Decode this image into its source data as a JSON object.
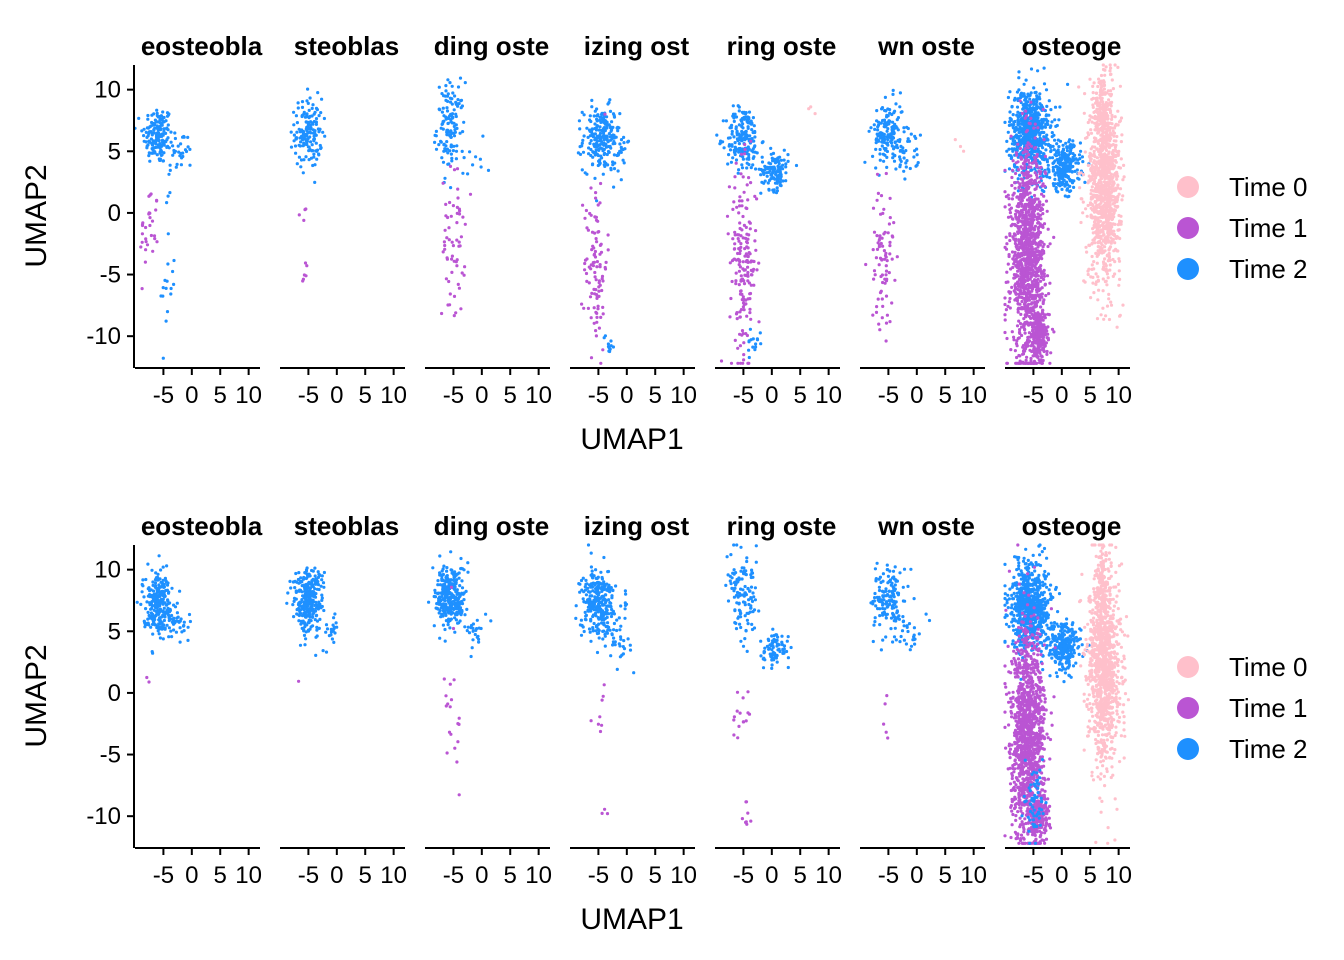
{
  "chart_data": [
    {
      "type": "scatter",
      "xlabel": "UMAP1",
      "ylabel": "UMAP2",
      "facets": [
        "eosteobla",
        "steoblas",
        "ding oste",
        "izing ost",
        "ring oste",
        "wn oste",
        "osteoge"
      ],
      "x_ticks": [
        -5,
        0,
        5,
        10
      ],
      "x_tick_labels": [
        "-5",
        "0",
        "5",
        "10"
      ],
      "y_ticks": [
        -10,
        -5,
        0,
        5,
        10
      ],
      "y_tick_labels": [
        "-10",
        "-5",
        "0",
        "5",
        "10"
      ],
      "xlim": [
        -10,
        12
      ],
      "ylim": [
        -12.5,
        12
      ],
      "legend": [
        {
          "label": "Time 0",
          "color": "#FFC0CB"
        },
        {
          "label": "Time 1",
          "color": "#BA55D3"
        },
        {
          "label": "Time 2",
          "color": "#1E90FF"
        }
      ],
      "legend_position": "right",
      "clusters": [
        [
          {
            "series": 2,
            "cx": -6,
            "cy": 6.3,
            "sx": 1.3,
            "sy": 1.2,
            "n": 160
          },
          {
            "series": 2,
            "cx": -2,
            "cy": 5,
            "sx": 1.2,
            "sy": 0.8,
            "n": 30
          },
          {
            "series": 1,
            "cx": -7.5,
            "cy": -1.5,
            "sx": 0.8,
            "sy": 2,
            "n": 30
          },
          {
            "series": 2,
            "cx": -4.5,
            "cy": -5,
            "sx": 0.8,
            "sy": 3.5,
            "n": 20
          }
        ],
        [
          {
            "series": 2,
            "cx": -5,
            "cy": 6.5,
            "sx": 1.2,
            "sy": 1.4,
            "n": 150
          },
          {
            "series": 1,
            "cx": -6,
            "cy": -3,
            "sx": 0.8,
            "sy": 2.5,
            "n": 10
          }
        ],
        [
          {
            "series": 2,
            "cx": -5.5,
            "cy": 7,
            "sx": 1.2,
            "sy": 1.8,
            "n": 130
          },
          {
            "series": 1,
            "cx": -5,
            "cy": -2.5,
            "sx": 1,
            "sy": 3,
            "n": 60
          },
          {
            "series": 2,
            "cx": -1,
            "cy": 4,
            "sx": 1.5,
            "sy": 1.5,
            "n": 8
          }
        ],
        [
          {
            "series": 2,
            "cx": -4.5,
            "cy": 6,
            "sx": 1.6,
            "sy": 1.3,
            "n": 220
          },
          {
            "series": 2,
            "cx": -1.5,
            "cy": 4.5,
            "sx": 1,
            "sy": 1,
            "n": 20
          },
          {
            "series": 1,
            "cx": -5.5,
            "cy": -4,
            "sx": 1,
            "sy": 3.5,
            "n": 100
          },
          {
            "series": 2,
            "cx": -3,
            "cy": -10.5,
            "sx": 0.6,
            "sy": 0.6,
            "n": 12
          }
        ],
        [
          {
            "series": 2,
            "cx": -5,
            "cy": 6,
            "sx": 1.5,
            "sy": 1.3,
            "n": 180
          },
          {
            "series": 2,
            "cx": 0.5,
            "cy": 3.5,
            "sx": 1.2,
            "sy": 0.8,
            "n": 120
          },
          {
            "series": 1,
            "cx": -5,
            "cy": -4,
            "sx": 1.2,
            "sy": 3.8,
            "n": 180
          },
          {
            "series": 2,
            "cx": -3,
            "cy": -10.5,
            "sx": 0.7,
            "sy": 0.7,
            "n": 15
          },
          {
            "series": 0,
            "cx": 7.5,
            "cy": 8.5,
            "sx": 0.5,
            "sy": 0.3,
            "n": 3
          }
        ],
        [
          {
            "series": 2,
            "cx": -5,
            "cy": 6.5,
            "sx": 1.4,
            "sy": 1.3,
            "n": 160
          },
          {
            "series": 2,
            "cx": -1.5,
            "cy": 4.5,
            "sx": 1.3,
            "sy": 1,
            "n": 30
          },
          {
            "series": 1,
            "cx": -6,
            "cy": -3.5,
            "sx": 1,
            "sy": 2.8,
            "n": 80
          },
          {
            "series": 0,
            "cx": 7,
            "cy": 5.5,
            "sx": 0.6,
            "sy": 1,
            "n": 3
          }
        ],
        [
          {
            "series": 2,
            "cx": -5.5,
            "cy": 6.5,
            "sx": 1.8,
            "sy": 1.8,
            "n": 700
          },
          {
            "series": 2,
            "cx": 0.5,
            "cy": 3.8,
            "sx": 1.4,
            "sy": 1,
            "n": 250
          },
          {
            "series": 1,
            "cx": -6,
            "cy": -3.5,
            "sx": 1.5,
            "sy": 4.2,
            "n": 1200
          },
          {
            "series": 1,
            "cx": -4,
            "cy": -10,
            "sx": 0.8,
            "sy": 1,
            "n": 200
          },
          {
            "series": 0,
            "cx": 7.5,
            "cy": 2,
            "sx": 1.4,
            "sy": 3.8,
            "n": 1000
          },
          {
            "series": 0,
            "cx": 7,
            "cy": 8.5,
            "sx": 0.6,
            "sy": 1.5,
            "n": 150
          }
        ]
      ]
    },
    {
      "type": "scatter",
      "xlabel": "UMAP1",
      "ylabel": "UMAP2",
      "facets": [
        "eosteobla",
        "steoblas",
        "ding oste",
        "izing ost",
        "ring oste",
        "wn oste",
        "osteoge"
      ],
      "x_ticks": [
        -5,
        0,
        5,
        10
      ],
      "x_tick_labels": [
        "-5",
        "0",
        "5",
        "10"
      ],
      "y_ticks": [
        -10,
        -5,
        0,
        5,
        10
      ],
      "y_tick_labels": [
        "-10",
        "-5",
        "0",
        "5",
        "10"
      ],
      "xlim": [
        -10,
        12
      ],
      "ylim": [
        -12.5,
        12
      ],
      "legend": [
        {
          "label": "Time 0",
          "color": "#FFC0CB"
        },
        {
          "label": "Time 1",
          "color": "#BA55D3"
        },
        {
          "label": "Time 2",
          "color": "#1E90FF"
        }
      ],
      "legend_position": "right",
      "clusters": [
        [
          {
            "series": 2,
            "cx": -6,
            "cy": 7.3,
            "sx": 1.3,
            "sy": 1.3,
            "n": 250
          },
          {
            "series": 2,
            "cx": -2.5,
            "cy": 5.5,
            "sx": 1.2,
            "sy": 0.7,
            "n": 30
          },
          {
            "series": 1,
            "cx": -7.5,
            "cy": 1.2,
            "sx": 0.4,
            "sy": 0.4,
            "n": 2
          }
        ],
        [
          {
            "series": 2,
            "cx": -5,
            "cy": 7.5,
            "sx": 1.3,
            "sy": 1.3,
            "n": 300
          },
          {
            "series": 2,
            "cx": -1.5,
            "cy": 5,
            "sx": 1,
            "sy": 0.8,
            "n": 20
          },
          {
            "series": 1,
            "cx": -7,
            "cy": 0.8,
            "sx": 0.2,
            "sy": 0.2,
            "n": 1
          }
        ],
        [
          {
            "series": 2,
            "cx": -5.5,
            "cy": 7.8,
            "sx": 1.3,
            "sy": 1.3,
            "n": 300
          },
          {
            "series": 2,
            "cx": -1,
            "cy": 5,
            "sx": 1,
            "sy": 0.8,
            "n": 25
          },
          {
            "series": 1,
            "cx": -5,
            "cy": -2,
            "sx": 0.8,
            "sy": 2.8,
            "n": 20
          }
        ],
        [
          {
            "series": 2,
            "cx": -5,
            "cy": 7.3,
            "sx": 1.5,
            "sy": 1.4,
            "n": 300
          },
          {
            "series": 2,
            "cx": -1.5,
            "cy": 4.5,
            "sx": 1,
            "sy": 1,
            "n": 30
          },
          {
            "series": 1,
            "cx": -5,
            "cy": -1.5,
            "sx": 0.8,
            "sy": 1.2,
            "n": 8
          },
          {
            "series": 1,
            "cx": -3.5,
            "cy": -9.8,
            "sx": 0.5,
            "sy": 0.5,
            "n": 3
          }
        ],
        [
          {
            "series": 2,
            "cx": -5,
            "cy": 7.5,
            "sx": 1.4,
            "sy": 1.6,
            "n": 120
          },
          {
            "series": 2,
            "cx": 0.5,
            "cy": 3.5,
            "sx": 1.2,
            "sy": 0.8,
            "n": 80
          },
          {
            "series": 1,
            "cx": -5,
            "cy": -1.8,
            "sx": 1,
            "sy": 1.3,
            "n": 15
          },
          {
            "series": 1,
            "cx": -4.5,
            "cy": -9.5,
            "sx": 0.5,
            "sy": 0.8,
            "n": 8
          }
        ],
        [
          {
            "series": 2,
            "cx": -5,
            "cy": 7.5,
            "sx": 1.4,
            "sy": 1.3,
            "n": 150
          },
          {
            "series": 2,
            "cx": -1.5,
            "cy": 5,
            "sx": 1.2,
            "sy": 0.8,
            "n": 25
          },
          {
            "series": 1,
            "cx": -5.5,
            "cy": -2,
            "sx": 0.3,
            "sy": 0.8,
            "n": 5
          }
        ],
        [
          {
            "series": 2,
            "cx": -5.5,
            "cy": 7,
            "sx": 1.8,
            "sy": 1.8,
            "n": 700
          },
          {
            "series": 2,
            "cx": 0.5,
            "cy": 3.8,
            "sx": 1.4,
            "sy": 1,
            "n": 250
          },
          {
            "series": 1,
            "cx": -6,
            "cy": -3.5,
            "sx": 1.5,
            "sy": 4.2,
            "n": 1200
          },
          {
            "series": 1,
            "cx": -4,
            "cy": -10,
            "sx": 0.8,
            "sy": 1,
            "n": 200
          },
          {
            "series": 2,
            "cx": -4.5,
            "cy": -9,
            "sx": 0.8,
            "sy": 1.5,
            "n": 60
          },
          {
            "series": 0,
            "cx": 7.5,
            "cy": 2,
            "sx": 1.4,
            "sy": 3.8,
            "n": 1000
          },
          {
            "series": 0,
            "cx": 7,
            "cy": 8.5,
            "sx": 0.6,
            "sy": 1.5,
            "n": 150
          }
        ]
      ]
    }
  ]
}
